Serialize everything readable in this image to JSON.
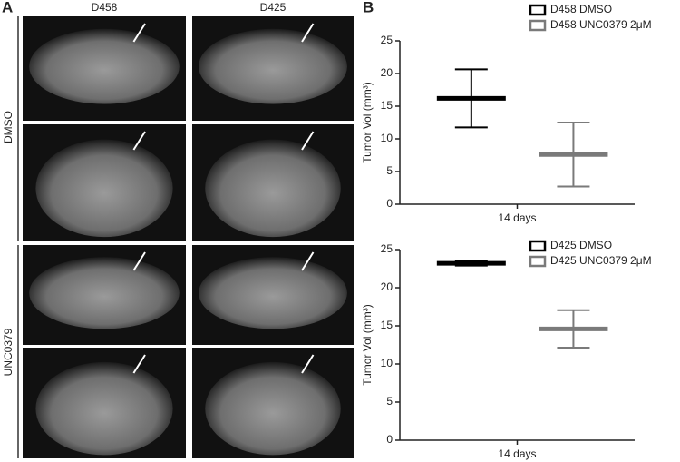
{
  "panel_a": {
    "label": "A",
    "columns": [
      "D458",
      "D425"
    ],
    "rows": [
      "DMSO",
      "UNC0379"
    ]
  },
  "panel_b": {
    "label": "B"
  },
  "chart_data": [
    {
      "type": "errorbar",
      "ylabel": "Tumor Vol (mm³)",
      "categories": [
        "14 days"
      ],
      "legend": "top",
      "series": [
        {
          "name": "D458 DMSO",
          "color": "#000000",
          "values": [
            16.2
          ],
          "errors": [
            4.45
          ]
        },
        {
          "name": "D458 UNC0379 2μM",
          "color": "#7a7a7a",
          "values": [
            7.6
          ],
          "errors": [
            4.9
          ]
        }
      ],
      "ylim": [
        0,
        25
      ],
      "yticks": [
        0,
        5,
        10,
        15,
        20,
        25
      ]
    },
    {
      "type": "errorbar",
      "ylabel": "Tumor Vol (mm³)",
      "categories": [
        "14 days"
      ],
      "legend": "top",
      "series": [
        {
          "name": "D425 DMSO",
          "color": "#000000",
          "values": [
            23.2
          ],
          "errors": [
            0.3
          ]
        },
        {
          "name": "D425 UNC0379 2μM",
          "color": "#7a7a7a",
          "values": [
            14.6
          ],
          "errors": [
            2.45
          ]
        }
      ],
      "ylim": [
        0,
        25
      ],
      "yticks": [
        0,
        5,
        10,
        15,
        20,
        25
      ]
    }
  ]
}
